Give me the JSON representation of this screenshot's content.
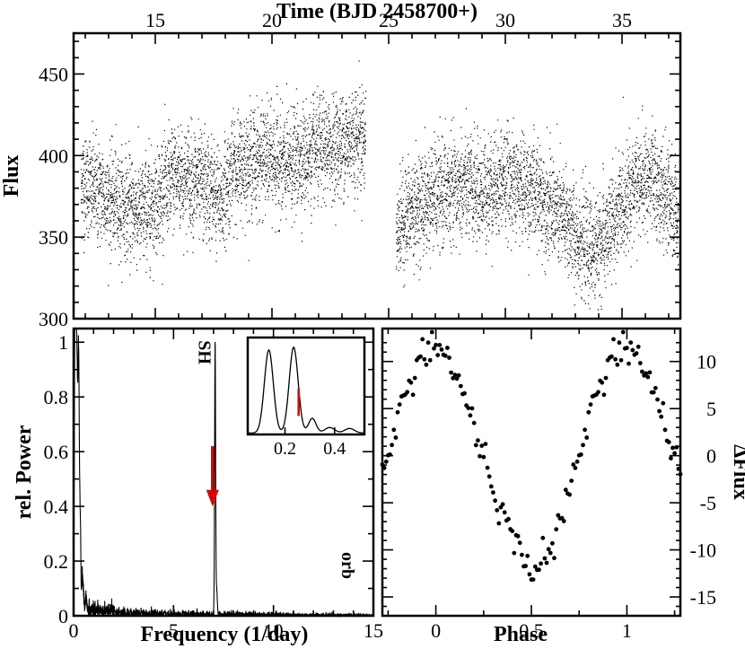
{
  "chart_data": [
    {
      "id": "light-curve",
      "type": "scatter",
      "xlabel": "Time (BJD 2458700+)",
      "ylabel": "Flux",
      "xlim": [
        11.5,
        37.5
      ],
      "ylim": [
        300,
        475
      ],
      "xticks": [
        15,
        20,
        25,
        30,
        35
      ],
      "yticks": [
        300,
        350,
        400,
        450
      ],
      "gap": [
        24.0,
        25.3
      ],
      "trend": {
        "x": [
          11.8,
          12.5,
          13.2,
          13.8,
          14.5,
          15.2,
          15.8,
          16.5,
          17.2,
          17.8,
          18.3,
          19.0,
          19.8,
          20.5,
          21.2,
          22.0,
          22.8,
          23.4,
          24.0,
          25.3,
          26.0,
          26.8,
          27.5,
          28.3,
          29.0,
          29.8,
          30.5,
          31.2,
          31.8,
          32.4,
          33.0,
          33.6,
          34.2,
          34.8,
          35.5,
          36.2,
          37.0,
          37.4
        ],
        "y": [
          383,
          378,
          372,
          368,
          365,
          376,
          388,
          385,
          380,
          372,
          392,
          396,
          399,
          393,
          398,
          403,
          406,
          410,
          412,
          355,
          366,
          374,
          378,
          381,
          377,
          385,
          382,
          378,
          370,
          362,
          351,
          342,
          348,
          364,
          382,
          385,
          372,
          362
        ]
      },
      "scatter_amplitude": 15,
      "points_per_day": 300
    },
    {
      "id": "power-spectrum",
      "type": "line",
      "xlabel": "Frequency (1/day)",
      "ylabel": "rel. Power",
      "xlim": [
        0,
        15
      ],
      "ylim": [
        0,
        1.05
      ],
      "xticks": [
        0,
        5,
        10,
        15
      ],
      "yticks": [
        0,
        0.2,
        0.4,
        0.6,
        0.8,
        1
      ],
      "ytick_labels": [
        "0",
        "0.2",
        "0.4",
        "0.6",
        "0.8",
        "1"
      ],
      "peaks": [
        {
          "f": 0.07,
          "p": 0.92,
          "w": 0.035
        },
        {
          "f": 0.12,
          "p": 0.97,
          "w": 0.035
        },
        {
          "f": 0.18,
          "p": 0.55,
          "w": 0.03
        },
        {
          "f": 0.25,
          "p": 0.93,
          "w": 0.035
        },
        {
          "f": 0.33,
          "p": 0.3,
          "w": 0.03
        },
        {
          "f": 0.45,
          "p": 0.12,
          "w": 0.04
        },
        {
          "f": 0.62,
          "p": 0.05,
          "w": 0.04
        },
        {
          "f": 7.08,
          "p": 1.0,
          "w": 0.025
        },
        {
          "f": 7.16,
          "p": 0.09,
          "w": 0.03
        }
      ],
      "noise_level": 0.018,
      "annotations": {
        "sh_label": "SH",
        "sh_freq": 7.08,
        "orb_label": "orb",
        "orb_freq": 12.0,
        "arrow_freq": 6.95,
        "arrow_color": "#e00000"
      },
      "inset": {
        "xlim": [
          0.05,
          0.52
        ],
        "ylim": [
          0,
          1.05
        ],
        "xticks": [
          0.2,
          0.4
        ],
        "xtick_labels": [
          "0.2",
          "0.4"
        ],
        "marker_freq": 0.255,
        "marker_color": "#e00000"
      }
    },
    {
      "id": "phased-curve",
      "type": "scatter",
      "xlabel": "Phase",
      "ylabel": "ΔFlux",
      "xlim": [
        -0.28,
        1.28
      ],
      "ylim": [
        -17,
        13.5
      ],
      "xticks": [
        0,
        0.5,
        1
      ],
      "xtick_labels": [
        "0",
        "0.5",
        "1"
      ],
      "yticks": [
        -15,
        -10,
        -5,
        0,
        5,
        10
      ],
      "n_bins": 100,
      "amplitude": 11.5,
      "phase_of_max": 0.0
    }
  ]
}
